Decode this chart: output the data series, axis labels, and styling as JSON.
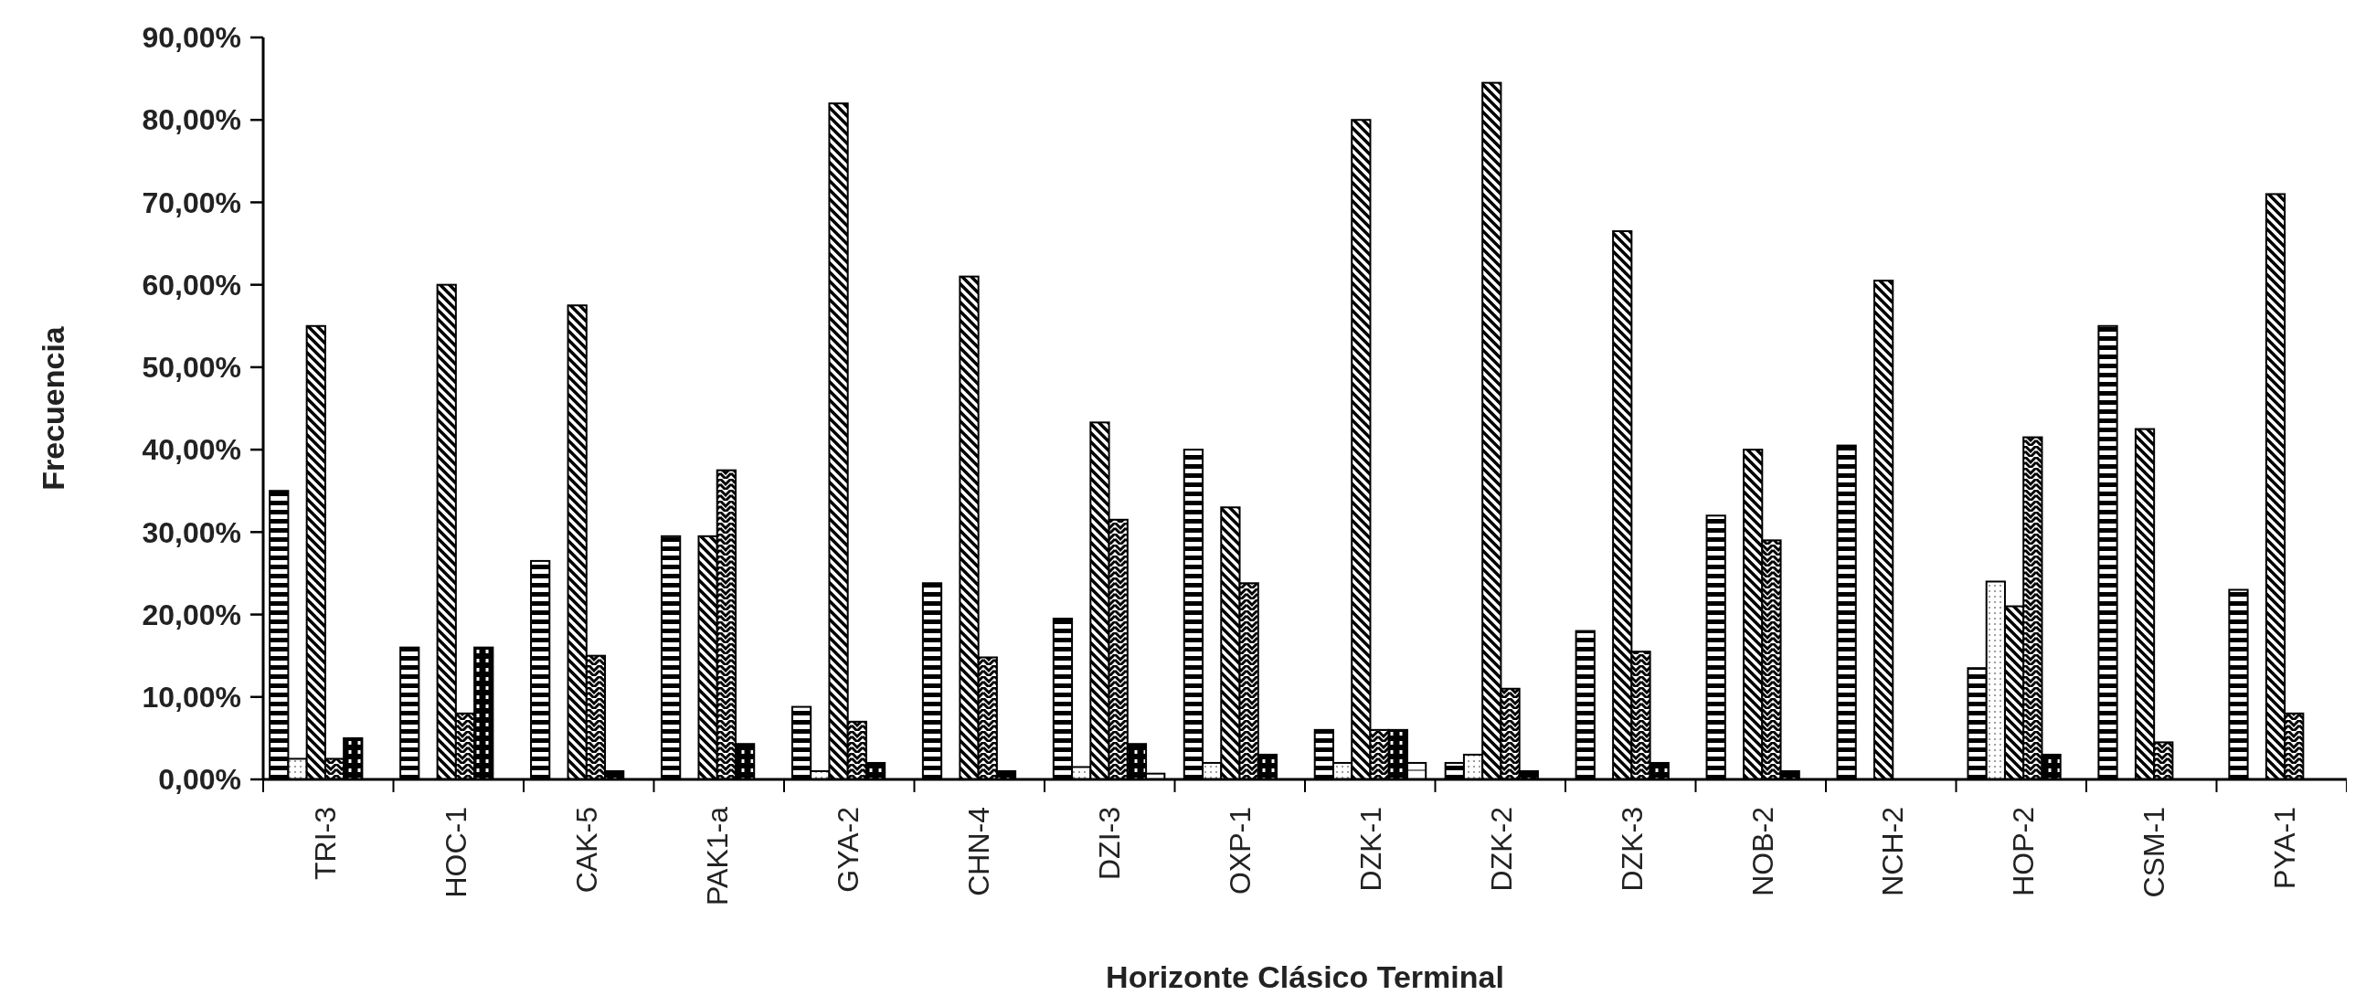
{
  "chart_data": {
    "type": "bar",
    "xlabel": "Horizonte Clásico Terminal",
    "ylabel": "Frecuencia",
    "categories": [
      "TRI-3",
      "HOC-1",
      "CAK-5",
      "PAK1-a",
      "GYA-2",
      "CHN-4",
      "DZI-3",
      "OXP-1",
      "DZK-1",
      "DZK-2",
      "DZK-3",
      "NOB-2",
      "NCH-2",
      "HOP-2",
      "CSM-1",
      "PYA-1"
    ],
    "series": [
      {
        "color": "#000000",
        "values": [
          35,
          16,
          26.5,
          29.5,
          8.8,
          23.8,
          19.5,
          40,
          6,
          2,
          18,
          32,
          40.5,
          13.5,
          55,
          23
        ]
      },
      {
        "color": "#000000",
        "values": [
          2.5,
          null,
          null,
          null,
          1,
          null,
          1.5,
          2,
          2,
          3,
          null,
          null,
          null,
          24,
          null,
          null
        ]
      },
      {
        "color": "#000000",
        "values": [
          55,
          60,
          57.5,
          29.5,
          82,
          61,
          43.3,
          33,
          80,
          84.5,
          66.5,
          40,
          60.5,
          21,
          42.5,
          71
        ]
      },
      {
        "color": "#000000",
        "values": [
          2.5,
          8,
          15,
          37.5,
          7,
          14.8,
          31.5,
          23.8,
          6,
          11,
          15.5,
          29,
          null,
          41.5,
          4.5,
          8
        ]
      },
      {
        "color": "#000000",
        "values": [
          5,
          16,
          1,
          4.3,
          2,
          1,
          4.3,
          3,
          6,
          1,
          2,
          1,
          null,
          3,
          null,
          null
        ]
      },
      {
        "color": "#000000",
        "values": [
          null,
          null,
          null,
          null,
          null,
          null,
          0.7,
          null,
          2,
          null,
          null,
          null,
          null,
          null,
          null,
          null
        ]
      }
    ],
    "ylim": [
      0,
      90
    ],
    "yticks": [
      {
        "value": 0,
        "label": "0,00%"
      },
      {
        "value": 10,
        "label": "10,00%"
      },
      {
        "value": 20,
        "label": "20,00%"
      },
      {
        "value": 30,
        "label": "30,00%"
      },
      {
        "value": 40,
        "label": "40,00%"
      },
      {
        "value": 50,
        "label": "50,00%"
      },
      {
        "value": 60,
        "label": "60,00%"
      },
      {
        "value": 70,
        "label": "70,00%"
      },
      {
        "value": 80,
        "label": "80,00%"
      },
      {
        "value": 90,
        "label": "90,00%"
      }
    ],
    "grid": false
  }
}
